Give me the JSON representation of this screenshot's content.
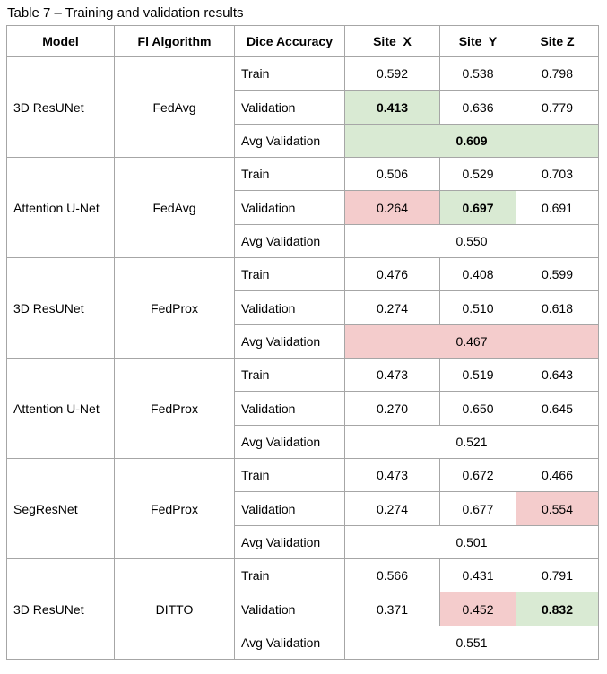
{
  "caption": "Table 7 – Training and validation results",
  "colors": {
    "border": "#a6a6a6",
    "highlight_green": "#d9ead3",
    "highlight_red": "#f4cccc"
  },
  "headers": [
    "Model",
    "Fl Algorithm",
    "Dice Accuracy",
    "Site  X",
    "Site  Y",
    "Site Z"
  ],
  "groups": [
    {
      "model": "3D ResUNet",
      "algorithm": "FedAvg",
      "train": {
        "label": "Train",
        "values": [
          "0.592",
          "0.538",
          "0.798"
        ],
        "highlight": [
          "",
          "",
          ""
        ],
        "bold": [
          false,
          false,
          false
        ]
      },
      "validation": {
        "label": "Validation",
        "values": [
          "0.413",
          "0.636",
          "0.779"
        ],
        "highlight": [
          "green",
          "",
          ""
        ],
        "bold": [
          true,
          false,
          false
        ]
      },
      "avg": {
        "label": "Avg Validation",
        "value": "0.609",
        "highlight": "green",
        "bold": true
      }
    },
    {
      "model": "Attention U-Net",
      "algorithm": "FedAvg",
      "train": {
        "label": "Train",
        "values": [
          "0.506",
          "0.529",
          "0.703"
        ],
        "highlight": [
          "",
          "",
          ""
        ],
        "bold": [
          false,
          false,
          false
        ]
      },
      "validation": {
        "label": "Validation",
        "values": [
          "0.264",
          "0.697",
          "0.691"
        ],
        "highlight": [
          "red",
          "green",
          ""
        ],
        "bold": [
          false,
          true,
          false
        ]
      },
      "avg": {
        "label": "Avg Validation",
        "value": "0.550",
        "highlight": "",
        "bold": false
      }
    },
    {
      "model": "3D ResUNet",
      "algorithm": "FedProx",
      "train": {
        "label": "Train",
        "values": [
          "0.476",
          "0.408",
          "0.599"
        ],
        "highlight": [
          "",
          "",
          ""
        ],
        "bold": [
          false,
          false,
          false
        ]
      },
      "validation": {
        "label": "Validation",
        "values": [
          "0.274",
          "0.510",
          "0.618"
        ],
        "highlight": [
          "",
          "",
          ""
        ],
        "bold": [
          false,
          false,
          false
        ]
      },
      "avg": {
        "label": "Avg Validation",
        "value": "0.467",
        "highlight": "red",
        "bold": false
      }
    },
    {
      "model": "Attention U-Net",
      "algorithm": "FedProx",
      "train": {
        "label": "Train",
        "values": [
          "0.473",
          "0.519",
          "0.643"
        ],
        "highlight": [
          "",
          "",
          ""
        ],
        "bold": [
          false,
          false,
          false
        ]
      },
      "validation": {
        "label": "Validation",
        "values": [
          "0.270",
          "0.650",
          "0.645"
        ],
        "highlight": [
          "",
          "",
          ""
        ],
        "bold": [
          false,
          false,
          false
        ]
      },
      "avg": {
        "label": "Avg Validation",
        "value": "0.521",
        "highlight": "",
        "bold": false
      }
    },
    {
      "model": "SegResNet",
      "algorithm": "FedProx",
      "train": {
        "label": "Train",
        "values": [
          "0.473",
          "0.672",
          "0.466"
        ],
        "highlight": [
          "",
          "",
          ""
        ],
        "bold": [
          false,
          false,
          false
        ]
      },
      "validation": {
        "label": "Validation",
        "values": [
          "0.274",
          "0.677",
          "0.554"
        ],
        "highlight": [
          "",
          "",
          "red"
        ],
        "bold": [
          false,
          false,
          false
        ]
      },
      "avg": {
        "label": "Avg Validation",
        "value": "0.501",
        "highlight": "",
        "bold": false
      }
    },
    {
      "model": "3D ResUNet",
      "algorithm": "DITTO",
      "train": {
        "label": "Train",
        "values": [
          "0.566",
          "0.431",
          "0.791"
        ],
        "highlight": [
          "",
          "",
          ""
        ],
        "bold": [
          false,
          false,
          false
        ]
      },
      "validation": {
        "label": "Validation",
        "values": [
          "0.371",
          "0.452",
          "0.832"
        ],
        "highlight": [
          "",
          "red",
          "green"
        ],
        "bold": [
          false,
          false,
          true
        ]
      },
      "avg": {
        "label": "Avg Validation",
        "value": "0.551",
        "highlight": "",
        "bold": false
      }
    }
  ]
}
